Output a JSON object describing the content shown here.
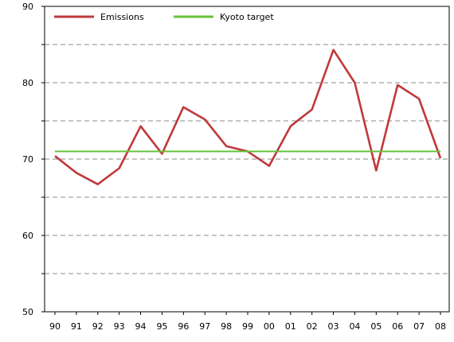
{
  "chart_data": {
    "type": "line",
    "categories": [
      "90",
      "91",
      "92",
      "93",
      "94",
      "95",
      "96",
      "97",
      "98",
      "99",
      "00",
      "01",
      "02",
      "03",
      "04",
      "05",
      "06",
      "07",
      "08"
    ],
    "series": [
      {
        "name": "Emissions",
        "color": "#c0393b",
        "values": [
          70.4,
          68.2,
          66.7,
          68.8,
          74.3,
          70.7,
          76.8,
          75.2,
          71.7,
          71.0,
          69.1,
          74.3,
          76.5,
          84.3,
          80.0,
          68.5,
          79.7,
          77.9,
          70.1
        ]
      },
      {
        "name": "Kyoto target",
        "color": "#66c23a",
        "values": [
          71.0,
          71.0,
          71.0,
          71.0,
          71.0,
          71.0,
          71.0,
          71.0,
          71.0,
          71.0,
          71.0,
          71.0,
          71.0,
          71.0,
          71.0,
          71.0,
          71.0,
          71.0,
          71.0
        ]
      }
    ],
    "yticks": [
      50,
      60,
      70,
      80,
      90
    ],
    "ylim": [
      50,
      90
    ],
    "grid": {
      "y_dashed_every": 5
    },
    "legend_position": "top-left",
    "title": "",
    "xlabel": "",
    "ylabel": ""
  }
}
